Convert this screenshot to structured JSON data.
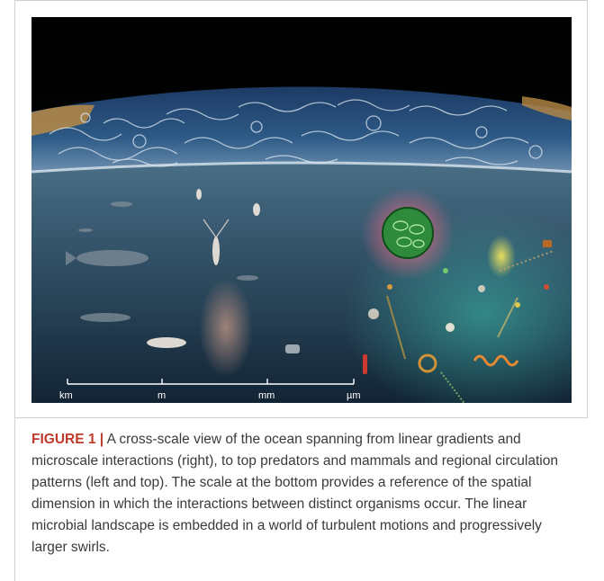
{
  "figure": {
    "scale_bar": {
      "labels": [
        "km",
        "m",
        "mm",
        "µm"
      ]
    }
  },
  "caption": {
    "label": "FIGURE 1 |",
    "text": " A cross-scale view of the ocean spanning from linear gradients and microscale interactions (right), to top predators and mammals and regional circulation patterns (left and top). The scale at the bottom provides a reference of the spatial dimension in which the interactions between distinct organisms occur. The linear microbial landscape is embedded in a world of turbulent motions and progressively larger swirls."
  }
}
